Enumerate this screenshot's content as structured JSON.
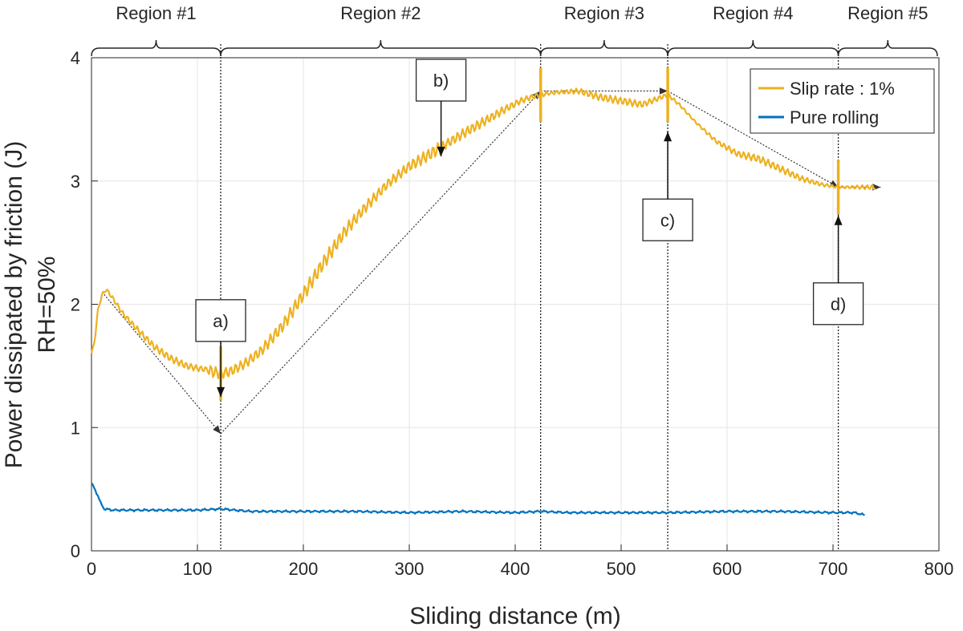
{
  "chart_data": {
    "type": "line",
    "title": "",
    "xlabel": "Sliding distance (m)",
    "ylabel": "Power dissipated by friction (J)",
    "ylabel2": "RH=50%",
    "xlim": [
      0,
      800
    ],
    "ylim": [
      0,
      4
    ],
    "xticks": [
      0,
      100,
      200,
      300,
      400,
      500,
      600,
      700,
      800
    ],
    "yticks": [
      0,
      1,
      2,
      3,
      4
    ],
    "grid": true,
    "legend_position": "top-right",
    "series": [
      {
        "name": "Slip rate : 1%",
        "color": "#EDB120",
        "x": [
          0,
          3,
          6,
          10,
          14,
          20,
          30,
          45,
          60,
          75,
          90,
          100,
          110,
          115,
          122,
          130,
          145,
          160,
          180,
          200,
          220,
          240,
          260,
          280,
          300,
          320,
          335,
          350,
          370,
          390,
          405,
          415,
          424,
          440,
          460,
          480,
          500,
          520,
          535,
          544,
          555,
          570,
          590,
          610,
          630,
          650,
          670,
          690,
          705,
          715,
          730,
          740
        ],
        "y": [
          1.6,
          1.7,
          1.95,
          2.08,
          2.12,
          2.05,
          1.92,
          1.78,
          1.65,
          1.56,
          1.5,
          1.48,
          1.47,
          1.45,
          1.44,
          1.45,
          1.52,
          1.62,
          1.82,
          2.08,
          2.35,
          2.6,
          2.8,
          2.98,
          3.12,
          3.22,
          3.3,
          3.38,
          3.48,
          3.58,
          3.65,
          3.68,
          3.7,
          3.72,
          3.73,
          3.68,
          3.65,
          3.62,
          3.67,
          3.7,
          3.62,
          3.48,
          3.32,
          3.22,
          3.18,
          3.1,
          3.02,
          2.97,
          2.95,
          2.95,
          2.95,
          2.95
        ]
      },
      {
        "name": "Pure rolling",
        "color": "#0072BD",
        "x": [
          0,
          3,
          6,
          9,
          12,
          20,
          50,
          100,
          122,
          150,
          200,
          250,
          300,
          350,
          400,
          424,
          450,
          500,
          544,
          600,
          650,
          700,
          720,
          730
        ],
        "y": [
          0.55,
          0.5,
          0.45,
          0.38,
          0.34,
          0.33,
          0.33,
          0.33,
          0.34,
          0.32,
          0.32,
          0.32,
          0.31,
          0.32,
          0.31,
          0.32,
          0.31,
          0.31,
          0.31,
          0.32,
          0.32,
          0.31,
          0.31,
          0.29
        ]
      }
    ],
    "regions": [
      {
        "label": "Region #1",
        "x_start": 0,
        "x_end": 122
      },
      {
        "label": "Region #2",
        "x_start": 122,
        "x_end": 424
      },
      {
        "label": "Region #3",
        "x_start": 424,
        "x_end": 544
      },
      {
        "label": "Region #4",
        "x_start": 544,
        "x_end": 705
      },
      {
        "label": "Region #5",
        "x_start": 705,
        "x_end": 800
      }
    ],
    "region_boundaries": [
      122,
      424,
      544,
      705
    ],
    "trend_line": {
      "x": [
        10,
        122,
        424,
        544,
        705,
        745
      ],
      "y": [
        2.1,
        0.95,
        3.73,
        3.73,
        2.95,
        2.95
      ]
    },
    "annotations": [
      {
        "label": "a)",
        "target_x": 122,
        "target_y": 1.25
      },
      {
        "label": "b)",
        "target_x": 330,
        "target_y": 3.2
      },
      {
        "label": "c)",
        "target_x": 544,
        "target_y": 3.4
      },
      {
        "label": "d)",
        "target_x": 705,
        "target_y": 2.72
      }
    ]
  }
}
